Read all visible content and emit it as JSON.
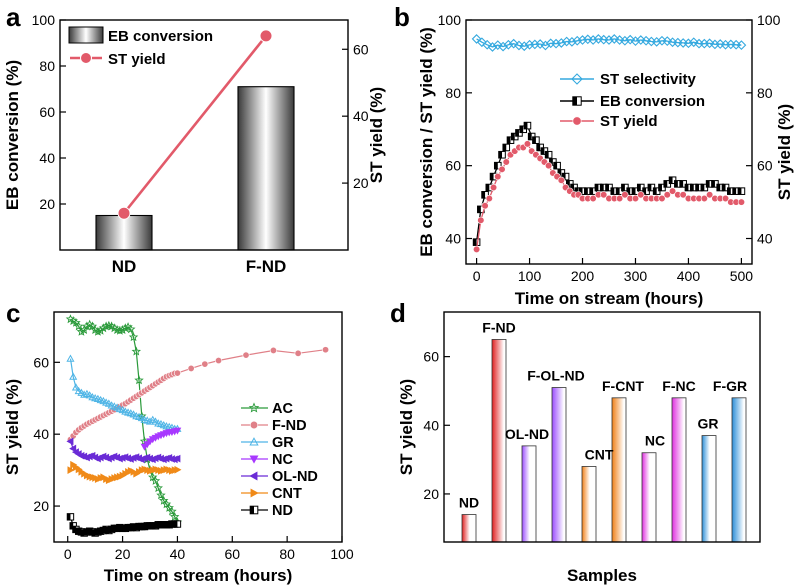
{
  "colors": {
    "axis": "#000000",
    "st_yield": "#e25a6a",
    "st_selectivity": "#35a9df",
    "ac": "#2a9a3a",
    "f_nd": "#e08088",
    "gr": "#4fb5e6",
    "nc": "#a838ff",
    "ol_nd": "#6a2bd6",
    "cnt": "#f08a18",
    "nd": "#000000"
  },
  "chart_data": [
    {
      "panel": "a",
      "type": "bar",
      "categories": [
        "ND",
        "F-ND"
      ],
      "series": [
        {
          "name": "EB conversion",
          "values": [
            15,
            71
          ],
          "axis": "left",
          "style": "bar"
        },
        {
          "name": "ST yield",
          "values": [
            11,
            64
          ],
          "axis": "right",
          "style": "line-marker",
          "color": "#e25a6a"
        }
      ],
      "ylabel": "EB conversion (%)",
      "y2label": "ST yield (%)",
      "ylim": [
        0,
        100
      ],
      "y2lim": [
        0,
        68.75
      ],
      "yticks": [
        20,
        40,
        60,
        80,
        100
      ],
      "y2ticks": [
        20,
        40,
        60
      ],
      "legend": "top-left"
    },
    {
      "panel": "b",
      "type": "line",
      "xlabel": "Time on stream (hours)",
      "ylabel": "EB conversion / ST yield (%)",
      "y2label": "ST yield (%)",
      "xlim": [
        -20,
        520
      ],
      "ylim": [
        33,
        100
      ],
      "xticks": [
        0,
        100,
        200,
        300,
        400,
        500
      ],
      "yticks": [
        40,
        60,
        80,
        100
      ],
      "y2ticks": [
        40,
        60,
        80,
        100
      ],
      "legend": "center-right",
      "series": [
        {
          "name": "ST selectivity",
          "color": "#35a9df",
          "marker": "diamond",
          "x": [
            0,
            10,
            20,
            30,
            40,
            50,
            60,
            70,
            80,
            90,
            100,
            110,
            120,
            130,
            140,
            150,
            160,
            170,
            180,
            190,
            200,
            210,
            220,
            230,
            240,
            250,
            260,
            270,
            280,
            290,
            300,
            310,
            320,
            330,
            340,
            350,
            360,
            370,
            380,
            390,
            400,
            410,
            420,
            430,
            440,
            450,
            460,
            470,
            480,
            490,
            500
          ],
          "values": [
            94.8,
            93.9,
            93.2,
            92.6,
            93.1,
            92.7,
            93.2,
            93.5,
            93.0,
            92.8,
            93.2,
            93.3,
            93.4,
            93.0,
            93.6,
            93.5,
            93.7,
            94.1,
            94.0,
            94.3,
            94.5,
            94.7,
            94.5,
            94.8,
            94.6,
            94.5,
            94.8,
            94.5,
            94.3,
            94.6,
            94.2,
            94.5,
            94.3,
            94.1,
            94.0,
            94.3,
            94.2,
            93.9,
            93.8,
            93.7,
            93.6,
            93.9,
            93.5,
            93.5,
            93.6,
            93.3,
            93.4,
            93.2,
            93.3,
            93.2,
            93.1
          ]
        },
        {
          "name": "EB conversion",
          "color": "#000000",
          "marker": "half-square",
          "x": [
            0,
            8,
            16,
            24,
            32,
            40,
            48,
            56,
            64,
            72,
            80,
            88,
            96,
            104,
            112,
            120,
            128,
            136,
            144,
            152,
            160,
            168,
            176,
            184,
            192,
            200,
            210,
            220,
            230,
            240,
            250,
            260,
            270,
            280,
            290,
            300,
            310,
            320,
            330,
            340,
            350,
            360,
            370,
            380,
            390,
            400,
            410,
            420,
            430,
            440,
            450,
            460,
            470,
            480,
            490,
            500
          ],
          "values": [
            39,
            48,
            52,
            54,
            57,
            60,
            63,
            65,
            67,
            68,
            69,
            70,
            71,
            68,
            67,
            65,
            64,
            63,
            61,
            60,
            58,
            57,
            55,
            54,
            53,
            53,
            53,
            53,
            54,
            54,
            54,
            53,
            53,
            54,
            53,
            53,
            54,
            53,
            54,
            53,
            54,
            55,
            56,
            55,
            55,
            54,
            54,
            54,
            54,
            55,
            55,
            54,
            54,
            53,
            53,
            53
          ]
        },
        {
          "name": "ST yield",
          "color": "#e25a6a",
          "marker": "circle",
          "x": [
            0,
            8,
            16,
            24,
            32,
            40,
            48,
            56,
            64,
            72,
            80,
            88,
            96,
            104,
            112,
            120,
            128,
            136,
            144,
            152,
            160,
            168,
            176,
            184,
            192,
            200,
            210,
            220,
            230,
            240,
            250,
            260,
            270,
            280,
            290,
            300,
            310,
            320,
            330,
            340,
            350,
            360,
            370,
            380,
            390,
            400,
            410,
            420,
            430,
            440,
            450,
            460,
            470,
            480,
            490,
            500
          ],
          "values": [
            37,
            45,
            49,
            51,
            54,
            57,
            59,
            61,
            63,
            64,
            65,
            65,
            66,
            64,
            63,
            62,
            61,
            60,
            58,
            57,
            56,
            54,
            53,
            52,
            52,
            51,
            51,
            51,
            52,
            52,
            51,
            51,
            51,
            52,
            51,
            51,
            52,
            51,
            51,
            51,
            51,
            52,
            53,
            52,
            52,
            51,
            51,
            51,
            51,
            52,
            51,
            51,
            51,
            50,
            50,
            50
          ]
        }
      ]
    },
    {
      "panel": "c",
      "type": "line",
      "xlabel": "Time on stream (hours)",
      "ylabel": "ST yield (%)",
      "xlim": [
        -5,
        100
      ],
      "ylim": [
        10,
        74
      ],
      "xticks": [
        0,
        20,
        40,
        60,
        80,
        100
      ],
      "yticks": [
        20,
        40,
        60
      ],
      "legend": "right",
      "series": [
        {
          "name": "AC",
          "color": "#2a9a3a",
          "marker": "star",
          "x": [
            1,
            2,
            3,
            4,
            5,
            6,
            7,
            8,
            9,
            10,
            11,
            12,
            13,
            14,
            15,
            16,
            17,
            18,
            19,
            20,
            21,
            22,
            23,
            24,
            25,
            26,
            27,
            28,
            29,
            30,
            31,
            32,
            33,
            34,
            35,
            36,
            37,
            38,
            39,
            40
          ],
          "values": [
            72,
            71.5,
            71,
            70,
            68.5,
            69,
            70,
            70.5,
            70,
            69,
            68.5,
            68.8,
            69.5,
            70,
            70.2,
            70,
            69.5,
            69,
            68.8,
            69,
            69.5,
            69.8,
            69.2,
            67,
            63,
            55,
            45,
            38,
            33,
            30,
            28,
            27,
            25,
            23,
            21.5,
            20.5,
            19.5,
            18.5,
            17,
            15.5
          ]
        },
        {
          "name": "F-ND",
          "color": "#e08088",
          "marker": "circle",
          "x": [
            1,
            2,
            3,
            4,
            5,
            6,
            7,
            8,
            9,
            10,
            11,
            12,
            13,
            14,
            15,
            16,
            17,
            18,
            19,
            20,
            21,
            22,
            23,
            24,
            25,
            26,
            27,
            28,
            29,
            30,
            31,
            32,
            33,
            34,
            35,
            36,
            37,
            38,
            39,
            40,
            45,
            50,
            55,
            65,
            75,
            84,
            94
          ],
          "values": [
            38.5,
            39.5,
            40.5,
            41.2,
            41.8,
            42.3,
            42.8,
            43.2,
            43.6,
            44,
            44.4,
            44.8,
            45.2,
            45.6,
            46,
            46.4,
            46.8,
            47.3,
            47.7,
            48.1,
            48.5,
            49,
            49.5,
            50,
            50.5,
            51,
            51.5,
            52,
            52.5,
            53,
            53.5,
            54,
            54.5,
            55,
            55.5,
            56,
            56.3,
            56.6,
            56.9,
            57,
            58.3,
            59.5,
            60.5,
            62,
            63.3,
            62.5,
            63.5
          ]
        },
        {
          "name": "GR",
          "color": "#4fb5e6",
          "marker": "triangle",
          "x": [
            1,
            2,
            3,
            4,
            5,
            6,
            7,
            8,
            9,
            10,
            11,
            12,
            13,
            14,
            15,
            16,
            17,
            18,
            19,
            20,
            21,
            22,
            23,
            24,
            25,
            26,
            27,
            28,
            29,
            30,
            31,
            32,
            33,
            34,
            35,
            36,
            37,
            38,
            39,
            40
          ],
          "values": [
            61,
            56,
            53,
            52,
            51.5,
            51,
            51.2,
            50.8,
            50.3,
            50,
            49.8,
            49.5,
            49.2,
            48.8,
            48.5,
            48,
            47.7,
            47.4,
            47,
            46.7,
            46.3,
            46,
            45.8,
            45.5,
            45,
            44.8,
            44.5,
            44,
            43.8,
            43.5,
            44,
            43.5,
            43,
            42.8,
            42.5,
            42.2,
            42,
            41.8,
            41.5,
            41.5
          ]
        },
        {
          "name": "NC",
          "color": "#a838ff",
          "marker": "triangle-down",
          "x": [
            28,
            29,
            30,
            31,
            32,
            33,
            34,
            35,
            36,
            37,
            38,
            39,
            40
          ],
          "values": [
            36.5,
            37.2,
            38,
            38.6,
            39,
            39.4,
            39.7,
            40,
            40.3,
            40.5,
            40.6,
            40.8,
            41
          ]
        },
        {
          "name": "OL-ND",
          "color": "#6a2bd6",
          "marker": "triangle-left",
          "x": [
            1,
            2,
            3,
            4,
            5,
            6,
            7,
            8,
            9,
            10,
            11,
            12,
            13,
            14,
            15,
            16,
            17,
            18,
            19,
            20,
            21,
            22,
            23,
            24,
            25,
            26,
            27,
            28,
            29,
            30,
            31,
            32,
            33,
            34,
            35,
            36,
            37,
            38,
            39,
            40
          ],
          "values": [
            38,
            36,
            35,
            34.5,
            34,
            33.8,
            33.5,
            33.8,
            34,
            33.5,
            33.2,
            33.5,
            33.8,
            33.5,
            33.2,
            33.5,
            33.8,
            33.5,
            33.2,
            33.4,
            33.6,
            33.3,
            33.1,
            33.4,
            33.6,
            33.3,
            33,
            33.3,
            33.5,
            33.2,
            33,
            33.3,
            33.5,
            33.2,
            33,
            33.2,
            33.4,
            33.1,
            33,
            33.2
          ]
        },
        {
          "name": "CNT",
          "color": "#f08a18",
          "marker": "triangle-right",
          "x": [
            1,
            2,
            3,
            4,
            5,
            6,
            7,
            8,
            9,
            10,
            11,
            12,
            13,
            14,
            15,
            16,
            17,
            18,
            19,
            20,
            21,
            22,
            23,
            24,
            25,
            26,
            27,
            28,
            29,
            30,
            31,
            32,
            33,
            34,
            35,
            36,
            37,
            38,
            39,
            40
          ],
          "values": [
            30,
            31.5,
            30.8,
            30.2,
            29.5,
            29,
            28.5,
            28.2,
            28,
            27.8,
            27.5,
            27.8,
            28,
            27.5,
            27.2,
            27.5,
            27.8,
            28,
            28.2,
            28.5,
            29,
            29.5,
            29.8,
            29.5,
            29,
            29.5,
            30,
            30.2,
            30,
            29.8,
            30,
            30.2,
            30,
            29.8,
            30,
            30.2,
            30,
            29.8,
            30,
            30.1
          ]
        },
        {
          "name": "ND",
          "color": "#000000",
          "marker": "half-square",
          "x": [
            1,
            2,
            3,
            4,
            5,
            6,
            7,
            8,
            9,
            10,
            11,
            12,
            13,
            14,
            15,
            16,
            17,
            18,
            19,
            20,
            21,
            22,
            23,
            24,
            25,
            26,
            27,
            28,
            29,
            30,
            31,
            32,
            33,
            34,
            35,
            36,
            37,
            38,
            39,
            40
          ],
          "values": [
            17,
            14.5,
            13.5,
            13,
            12.8,
            12.5,
            12.8,
            13,
            12.8,
            12.5,
            12.8,
            13,
            13.2,
            13.5,
            13.2,
            13.5,
            13.8,
            13.8,
            14,
            13.8,
            13.8,
            14,
            14,
            14.2,
            14,
            14.3,
            14.3,
            14.3,
            14.5,
            14.5,
            14.5,
            14.5,
            14.8,
            14.8,
            14.8,
            14.8,
            14.8,
            15,
            15,
            15
          ]
        }
      ]
    },
    {
      "panel": "d",
      "type": "bar",
      "xlabel": "Samples",
      "ylabel": "ST yield (%)",
      "ylim": [
        6,
        73
      ],
      "yticks": [
        20,
        40,
        60
      ],
      "categories": [
        "ND",
        "F-ND",
        "OL-ND",
        "F-OL-ND",
        "CNT",
        "F-CNT",
        "NC",
        "F-NC",
        "GR",
        "F-GR"
      ],
      "values": [
        14,
        65,
        34,
        51,
        28,
        48,
        32,
        48,
        37,
        48
      ],
      "bar_colors": [
        "#e02020",
        "#e02020",
        "#9b4dff",
        "#9b4dff",
        "#f08018",
        "#f08018",
        "#e030e0",
        "#e030e0",
        "#2b8fd8",
        "#2b8fd8"
      ],
      "bar_fill_style": [
        "gradient-strong",
        "gradient-strong",
        "gradient-strong",
        "gradient-strong",
        "gradient-strong",
        "gradient-strong",
        "gradient-strong",
        "gradient-strong",
        "gradient-strong",
        "gradient-strong"
      ]
    }
  ],
  "panel_labels": [
    "a",
    "b",
    "c",
    "d"
  ]
}
